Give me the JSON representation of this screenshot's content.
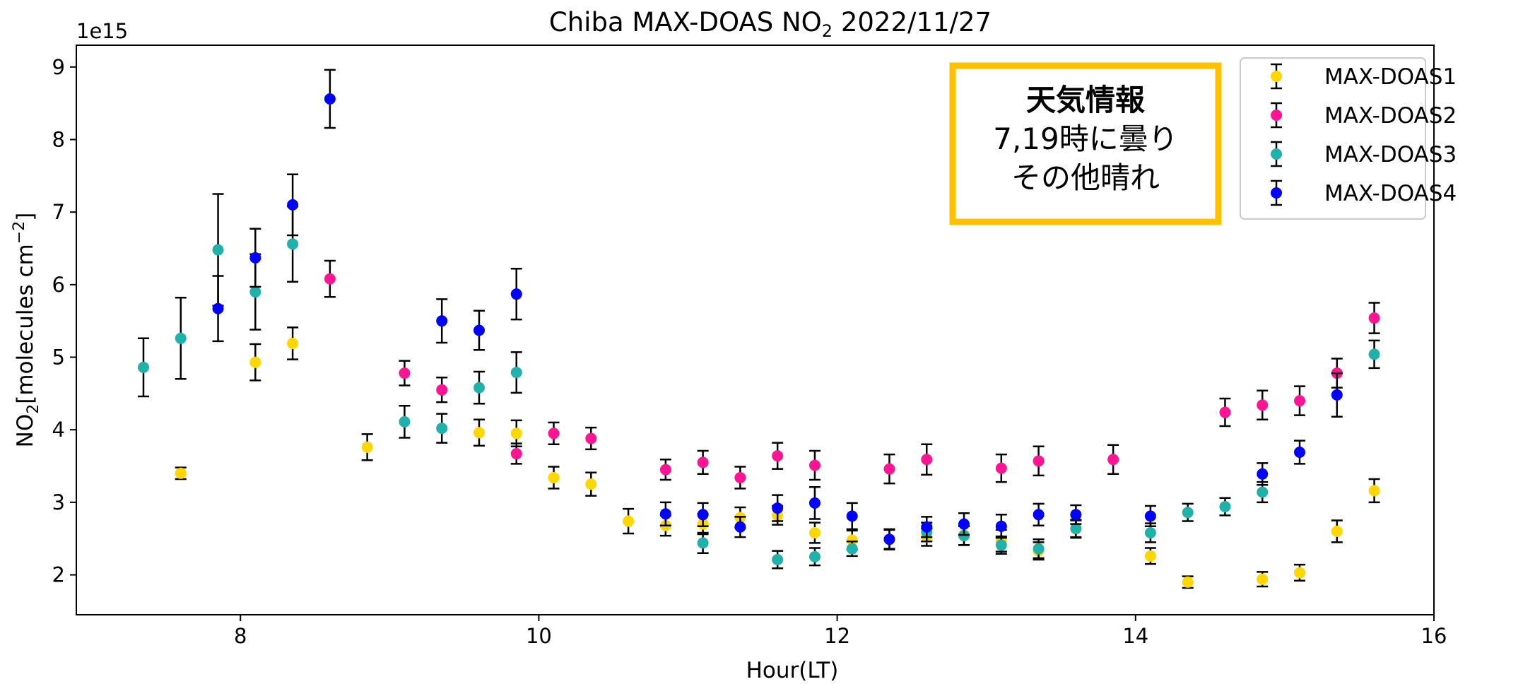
{
  "chart_data": {
    "type": "scatter",
    "title": "Chiba MAX-DOAS NO",
    "title_sub": "2",
    "title_suffix": " 2022/11/27",
    "xlabel": "Hour(LT)",
    "ylabel_parts": {
      "a": "NO",
      "a_sub": "2",
      "b": "[molecules cm",
      "b_sup": "−2",
      "c": "]"
    },
    "y_multiplier": "1e15",
    "xlim": [
      6.9,
      16.0
    ],
    "ylim": [
      1.45,
      9.3
    ],
    "x_ticks": [
      8,
      10,
      12,
      14,
      16
    ],
    "y_ticks": [
      2,
      3,
      4,
      5,
      6,
      7,
      8,
      9
    ],
    "grid": false,
    "legend_position": "upper right",
    "error_bars": true,
    "series": [
      {
        "name": "MAX-DOAS1",
        "color": "#FFD700",
        "points": [
          [
            7.6,
            3.4,
            0.08
          ],
          [
            8.1,
            4.93,
            0.25
          ],
          [
            8.35,
            5.19,
            0.22
          ],
          [
            8.85,
            3.76,
            0.18
          ],
          [
            9.6,
            3.96,
            0.18
          ],
          [
            9.85,
            3.95,
            0.18
          ],
          [
            10.1,
            3.34,
            0.15
          ],
          [
            10.35,
            3.25,
            0.16
          ],
          [
            10.6,
            2.74,
            0.17
          ],
          [
            10.85,
            2.68,
            0.14
          ],
          [
            11.1,
            2.7,
            0.14
          ],
          [
            11.35,
            2.79,
            0.14
          ],
          [
            11.6,
            2.82,
            0.13
          ],
          [
            11.85,
            2.58,
            0.14
          ],
          [
            12.1,
            2.48,
            0.13
          ],
          [
            12.35,
            2.49,
            0.14
          ],
          [
            12.6,
            2.52,
            0.12
          ],
          [
            12.85,
            2.55,
            0.14
          ],
          [
            13.1,
            2.47,
            0.15
          ],
          [
            13.35,
            2.33,
            0.12
          ],
          [
            13.6,
            2.63,
            0.12
          ],
          [
            14.1,
            2.26,
            0.11
          ],
          [
            14.35,
            1.9,
            0.08
          ],
          [
            14.85,
            1.94,
            0.1
          ],
          [
            15.1,
            2.03,
            0.11
          ],
          [
            15.35,
            2.6,
            0.15
          ],
          [
            15.6,
            3.16,
            0.16
          ]
        ]
      },
      {
        "name": "MAX-DOAS2",
        "color": "#FF1493",
        "points": [
          [
            8.6,
            6.08,
            0.25
          ],
          [
            9.1,
            4.78,
            0.17
          ],
          [
            9.35,
            4.55,
            0.17
          ],
          [
            9.85,
            3.67,
            0.14
          ],
          [
            10.1,
            3.95,
            0.15
          ],
          [
            10.35,
            3.88,
            0.15
          ],
          [
            10.85,
            3.45,
            0.14
          ],
          [
            11.1,
            3.55,
            0.16
          ],
          [
            11.35,
            3.34,
            0.15
          ],
          [
            11.6,
            3.64,
            0.18
          ],
          [
            11.85,
            3.51,
            0.2
          ],
          [
            12.35,
            3.46,
            0.2
          ],
          [
            12.6,
            3.59,
            0.21
          ],
          [
            13.1,
            3.47,
            0.19
          ],
          [
            13.35,
            3.57,
            0.2
          ],
          [
            13.85,
            3.59,
            0.2
          ],
          [
            14.6,
            4.24,
            0.19
          ],
          [
            14.85,
            4.34,
            0.2
          ],
          [
            15.1,
            4.4,
            0.2
          ],
          [
            15.35,
            4.78,
            0.2
          ],
          [
            15.6,
            5.54,
            0.21
          ]
        ]
      },
      {
        "name": "MAX-DOAS3",
        "color": "#20B2AA",
        "points": [
          [
            7.35,
            4.86,
            0.4
          ],
          [
            7.6,
            5.26,
            0.56
          ],
          [
            7.85,
            6.48,
            0.77
          ],
          [
            8.1,
            5.9,
            0.52
          ],
          [
            8.35,
            6.56,
            0.52
          ],
          [
            9.1,
            4.11,
            0.22
          ],
          [
            9.35,
            4.02,
            0.2
          ],
          [
            9.6,
            4.58,
            0.22
          ],
          [
            9.85,
            4.79,
            0.28
          ],
          [
            11.1,
            2.44,
            0.14
          ],
          [
            11.6,
            2.21,
            0.12
          ],
          [
            11.85,
            2.25,
            0.12
          ],
          [
            12.1,
            2.36,
            0.1
          ],
          [
            12.6,
            2.59,
            0.13
          ],
          [
            12.85,
            2.54,
            0.13
          ],
          [
            13.1,
            2.41,
            0.12
          ],
          [
            13.35,
            2.36,
            0.13
          ],
          [
            13.6,
            2.64,
            0.12
          ],
          [
            14.1,
            2.58,
            0.13
          ],
          [
            14.35,
            2.86,
            0.12
          ],
          [
            14.6,
            2.94,
            0.12
          ],
          [
            14.85,
            3.14,
            0.14
          ],
          [
            15.6,
            5.04,
            0.19
          ]
        ]
      },
      {
        "name": "MAX-DOAS4",
        "color": "#0000FF",
        "points": [
          [
            7.85,
            5.67,
            0.45
          ],
          [
            8.1,
            6.37,
            0.4
          ],
          [
            8.35,
            7.1,
            0.42
          ],
          [
            8.6,
            8.56,
            0.4
          ],
          [
            9.35,
            5.5,
            0.3
          ],
          [
            9.6,
            5.37,
            0.27
          ],
          [
            9.85,
            5.87,
            0.35
          ],
          [
            10.85,
            2.84,
            0.16
          ],
          [
            11.1,
            2.83,
            0.16
          ],
          [
            11.35,
            2.66,
            0.14
          ],
          [
            11.6,
            2.92,
            0.18
          ],
          [
            11.85,
            2.99,
            0.22
          ],
          [
            12.1,
            2.81,
            0.18
          ],
          [
            12.35,
            2.49,
            0.13
          ],
          [
            12.6,
            2.66,
            0.14
          ],
          [
            12.85,
            2.7,
            0.15
          ],
          [
            13.1,
            2.67,
            0.16
          ],
          [
            13.35,
            2.83,
            0.15
          ],
          [
            13.6,
            2.83,
            0.13
          ],
          [
            14.1,
            2.81,
            0.14
          ],
          [
            14.85,
            3.39,
            0.15
          ],
          [
            15.1,
            3.69,
            0.16
          ],
          [
            15.35,
            4.48,
            0.3
          ]
        ]
      }
    ]
  },
  "weather_box": {
    "title": "天気情報",
    "line1": "7,19時に曇り",
    "line2": "その他晴れ",
    "border_color": "#FFC000"
  }
}
